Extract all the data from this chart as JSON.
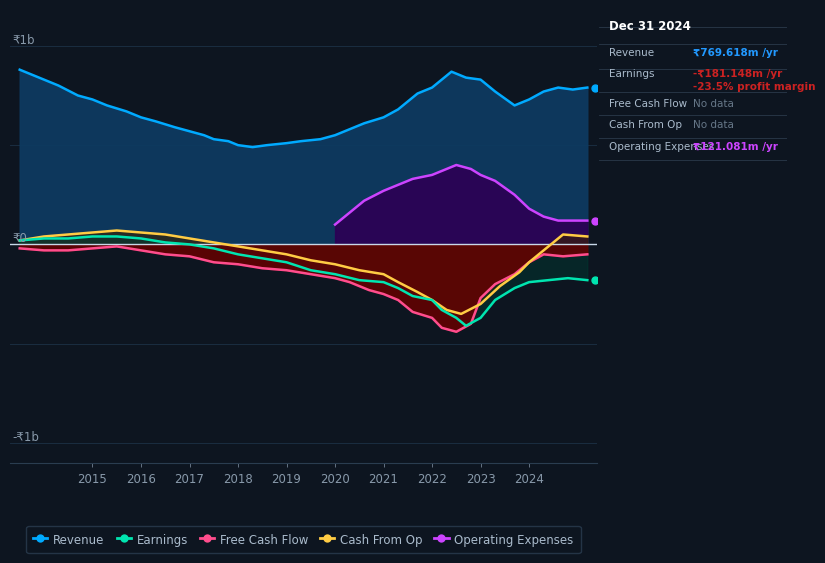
{
  "bg_color": "#0d1520",
  "plot_bg_color": "#0d1520",
  "y_label_top": "₹1b",
  "y_label_bottom": "-₹1b",
  "y_label_zero": "₹0",
  "x_ticks": [
    2015,
    2016,
    2017,
    2018,
    2019,
    2020,
    2021,
    2022,
    2023,
    2024
  ],
  "ylim": [
    -1.1,
    1.1
  ],
  "xlim": [
    2013.3,
    2025.4
  ],
  "legend_items": [
    {
      "label": "Revenue",
      "color": "#00aaff"
    },
    {
      "label": "Earnings",
      "color": "#00e5b0"
    },
    {
      "label": "Free Cash Flow",
      "color": "#ff4d8d"
    },
    {
      "label": "Cash From Op",
      "color": "#ffcc44"
    },
    {
      "label": "Operating Expenses",
      "color": "#cc44ff"
    }
  ],
  "info_box_title": "Dec 31 2024",
  "info_box_rows": [
    {
      "label": "Revenue",
      "value": "₹769.618m /yr",
      "value_color": "#2299ff"
    },
    {
      "label": "Earnings",
      "value": "-₹181.148m /yr",
      "value_color": "#cc2222"
    },
    {
      "label": "",
      "value": "-23.5% profit margin",
      "value_color": "#cc2222"
    },
    {
      "label": "Free Cash Flow",
      "value": "No data",
      "value_color": "#667788"
    },
    {
      "label": "Cash From Op",
      "value": "No data",
      "value_color": "#667788"
    },
    {
      "label": "Operating Expenses",
      "value": "₹121.081m /yr",
      "value_color": "#cc44ff"
    }
  ],
  "revenue_x": [
    2013.5,
    2014.0,
    2014.3,
    2014.7,
    2015.0,
    2015.3,
    2015.7,
    2016.0,
    2016.3,
    2016.7,
    2017.0,
    2017.3,
    2017.5,
    2017.8,
    2018.0,
    2018.3,
    2018.6,
    2019.0,
    2019.3,
    2019.7,
    2020.0,
    2020.3,
    2020.6,
    2021.0,
    2021.3,
    2021.5,
    2021.7,
    2022.0,
    2022.2,
    2022.4,
    2022.7,
    2023.0,
    2023.3,
    2023.7,
    2024.0,
    2024.3,
    2024.6,
    2024.9,
    2025.2
  ],
  "revenue_y": [
    0.88,
    0.83,
    0.8,
    0.75,
    0.73,
    0.7,
    0.67,
    0.64,
    0.62,
    0.59,
    0.57,
    0.55,
    0.53,
    0.52,
    0.5,
    0.49,
    0.5,
    0.51,
    0.52,
    0.53,
    0.55,
    0.58,
    0.61,
    0.64,
    0.68,
    0.72,
    0.76,
    0.79,
    0.83,
    0.87,
    0.84,
    0.83,
    0.77,
    0.7,
    0.73,
    0.77,
    0.79,
    0.78,
    0.79
  ],
  "earnings_x": [
    2013.5,
    2014.0,
    2014.5,
    2015.0,
    2015.5,
    2016.0,
    2016.5,
    2017.0,
    2017.5,
    2018.0,
    2018.5,
    2019.0,
    2019.5,
    2020.0,
    2020.5,
    2021.0,
    2021.3,
    2021.6,
    2022.0,
    2022.2,
    2022.5,
    2022.7,
    2023.0,
    2023.3,
    2023.7,
    2024.0,
    2024.4,
    2024.8,
    2025.2
  ],
  "earnings_y": [
    0.02,
    0.03,
    0.03,
    0.04,
    0.04,
    0.03,
    0.01,
    0.0,
    -0.02,
    -0.05,
    -0.07,
    -0.09,
    -0.13,
    -0.15,
    -0.18,
    -0.19,
    -0.22,
    -0.26,
    -0.28,
    -0.33,
    -0.37,
    -0.41,
    -0.37,
    -0.28,
    -0.22,
    -0.19,
    -0.18,
    -0.17,
    -0.18
  ],
  "fcf_x": [
    2013.5,
    2014.0,
    2014.5,
    2015.0,
    2015.5,
    2016.0,
    2016.5,
    2017.0,
    2017.5,
    2018.0,
    2018.5,
    2019.0,
    2019.5,
    2020.0,
    2020.3,
    2020.7,
    2021.0,
    2021.3,
    2021.6,
    2022.0,
    2022.2,
    2022.5,
    2022.8,
    2023.0,
    2023.3,
    2023.7,
    2024.0,
    2024.3,
    2024.7,
    2025.2
  ],
  "fcf_y": [
    -0.02,
    -0.03,
    -0.03,
    -0.02,
    -0.01,
    -0.03,
    -0.05,
    -0.06,
    -0.09,
    -0.1,
    -0.12,
    -0.13,
    -0.15,
    -0.17,
    -0.19,
    -0.23,
    -0.25,
    -0.28,
    -0.34,
    -0.37,
    -0.42,
    -0.44,
    -0.4,
    -0.27,
    -0.2,
    -0.15,
    -0.09,
    -0.05,
    -0.06,
    -0.05
  ],
  "cfo_x": [
    2013.5,
    2014.0,
    2014.5,
    2015.0,
    2015.5,
    2016.0,
    2016.5,
    2017.0,
    2017.5,
    2018.0,
    2018.5,
    2019.0,
    2019.5,
    2020.0,
    2020.5,
    2021.0,
    2021.3,
    2021.7,
    2022.0,
    2022.3,
    2022.6,
    2023.0,
    2023.4,
    2023.8,
    2024.0,
    2024.3,
    2024.7,
    2025.2
  ],
  "cfo_y": [
    0.02,
    0.04,
    0.05,
    0.06,
    0.07,
    0.06,
    0.05,
    0.03,
    0.01,
    -0.01,
    -0.03,
    -0.05,
    -0.08,
    -0.1,
    -0.13,
    -0.15,
    -0.19,
    -0.24,
    -0.28,
    -0.33,
    -0.35,
    -0.3,
    -0.21,
    -0.14,
    -0.09,
    -0.03,
    0.05,
    0.04
  ],
  "opex_x": [
    2020.0,
    2020.3,
    2020.6,
    2021.0,
    2021.3,
    2021.6,
    2022.0,
    2022.3,
    2022.5,
    2022.8,
    2023.0,
    2023.3,
    2023.7,
    2024.0,
    2024.3,
    2024.6,
    2024.9,
    2025.2
  ],
  "opex_y": [
    0.1,
    0.16,
    0.22,
    0.27,
    0.3,
    0.33,
    0.35,
    0.38,
    0.4,
    0.38,
    0.35,
    0.32,
    0.25,
    0.18,
    0.14,
    0.12,
    0.12,
    0.12
  ]
}
